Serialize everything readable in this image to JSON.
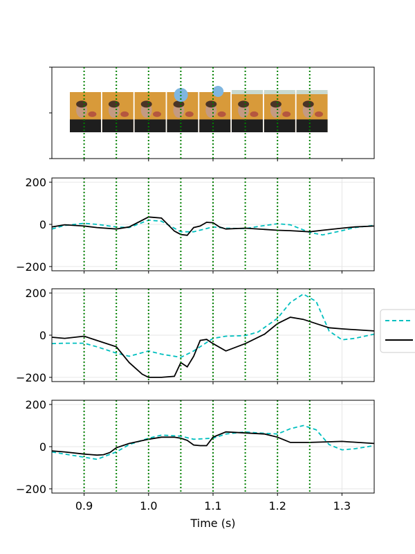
{
  "chart_data": {
    "type": "line",
    "xlabel": "Time (s)",
    "xlim": [
      0.85,
      1.35
    ],
    "x_ticks": [
      0.9,
      1.0,
      1.1,
      1.2,
      1.3
    ],
    "x_tick_labels": [
      "0.9",
      "1.0",
      "1.1",
      "1.2",
      "1.3"
    ],
    "vlines": [
      0.9,
      0.95,
      1.0,
      1.05,
      1.1,
      1.15,
      1.2,
      1.25
    ],
    "vline_color": "#008000",
    "frames_panel": {
      "frame_count": 8,
      "description_of_frames": "video frames of a man being hit in the face by a ball"
    },
    "panels": [
      {
        "ylim": [
          -220,
          220
        ],
        "y_ticks": [
          -200,
          0,
          200
        ],
        "y_tick_labels": [
          "−200",
          "0",
          "200"
        ],
        "grid": true,
        "series": [
          {
            "color": "#00BFBF",
            "dash": true,
            "x": [
              0.85,
              0.87,
              0.9,
              0.92,
              0.95,
              0.97,
              1.0,
              1.02,
              1.05,
              1.07,
              1.1,
              1.12,
              1.15,
              1.17,
              1.2,
              1.22,
              1.25,
              1.27,
              1.3,
              1.32,
              1.35
            ],
            "y": [
              -22,
              -5,
              5,
              0,
              -12,
              -15,
              20,
              15,
              -35,
              -35,
              -12,
              -18,
              -20,
              -10,
              3,
              -2,
              -38,
              -50,
              -30,
              -15,
              -5
            ]
          },
          {
            "color": "#000000",
            "dash": false,
            "x": [
              0.85,
              0.87,
              0.9,
              0.92,
              0.95,
              0.97,
              1.0,
              1.02,
              1.04,
              1.05,
              1.06,
              1.07,
              1.08,
              1.09,
              1.1,
              1.11,
              1.12,
              1.15,
              1.2,
              1.22,
              1.25,
              1.27,
              1.3,
              1.32,
              1.35
            ],
            "y": [
              -12,
              -2,
              -8,
              -15,
              -22,
              -12,
              35,
              30,
              -32,
              -48,
              -52,
              -15,
              -8,
              10,
              8,
              -12,
              -22,
              -18,
              -28,
              -30,
              -35,
              -28,
              -18,
              -12,
              -8
            ]
          }
        ]
      },
      {
        "ylim": [
          -220,
          220
        ],
        "y_ticks": [
          -200,
          0,
          200
        ],
        "y_tick_labels": [
          "−200",
          "0",
          "200"
        ],
        "grid": true,
        "series": [
          {
            "color": "#00BFBF",
            "dash": true,
            "x": [
              0.85,
              0.87,
              0.9,
              0.92,
              0.95,
              0.97,
              1.0,
              1.02,
              1.05,
              1.07,
              1.1,
              1.12,
              1.15,
              1.17,
              1.2,
              1.22,
              1.24,
              1.26,
              1.28,
              1.3,
              1.32,
              1.35
            ],
            "y": [
              -40,
              -38,
              -38,
              -55,
              -85,
              -100,
              -75,
              -90,
              -105,
              -75,
              -15,
              -5,
              -2,
              15,
              80,
              155,
              195,
              160,
              20,
              -22,
              -15,
              5
            ]
          },
          {
            "color": "#000000",
            "dash": false,
            "x": [
              0.85,
              0.87,
              0.9,
              0.92,
              0.95,
              0.97,
              0.99,
              1.0,
              1.02,
              1.04,
              1.05,
              1.06,
              1.07,
              1.08,
              1.09,
              1.1,
              1.12,
              1.15,
              1.18,
              1.2,
              1.22,
              1.24,
              1.26,
              1.28,
              1.3,
              1.35
            ],
            "y": [
              -10,
              -15,
              -5,
              -25,
              -55,
              -130,
              -185,
              -200,
              -200,
              -195,
              -130,
              -150,
              -100,
              -25,
              -20,
              -40,
              -75,
              -40,
              5,
              55,
              85,
              75,
              55,
              35,
              30,
              20
            ]
          }
        ]
      },
      {
        "ylim": [
          -220,
          220
        ],
        "y_ticks": [
          -200,
          0,
          200
        ],
        "y_tick_labels": [
          "−200",
          "0",
          "200"
        ],
        "grid": true,
        "series": [
          {
            "color": "#00BFBF",
            "dash": true,
            "x": [
              0.85,
              0.87,
              0.9,
              0.92,
              0.95,
              0.97,
              1.0,
              1.02,
              1.05,
              1.07,
              1.1,
              1.12,
              1.15,
              1.17,
              1.2,
              1.22,
              1.24,
              1.26,
              1.28,
              1.3,
              1.32,
              1.35
            ],
            "y": [
              -25,
              -35,
              -50,
              -60,
              -25,
              10,
              40,
              55,
              50,
              35,
              40,
              60,
              70,
              65,
              60,
              85,
              100,
              80,
              10,
              -15,
              -10,
              5
            ]
          },
          {
            "color": "#000000",
            "dash": false,
            "x": [
              0.85,
              0.87,
              0.9,
              0.92,
              0.93,
              0.94,
              0.95,
              0.97,
              1.0,
              1.02,
              1.04,
              1.05,
              1.06,
              1.07,
              1.08,
              1.09,
              1.1,
              1.12,
              1.15,
              1.18,
              1.2,
              1.22,
              1.25,
              1.3,
              1.35
            ],
            "y": [
              -20,
              -25,
              -35,
              -40,
              -38,
              -28,
              -5,
              15,
              35,
              45,
              45,
              40,
              30,
              8,
              5,
              5,
              45,
              70,
              65,
              60,
              45,
              20,
              20,
              25,
              15
            ]
          }
        ]
      }
    ]
  }
}
